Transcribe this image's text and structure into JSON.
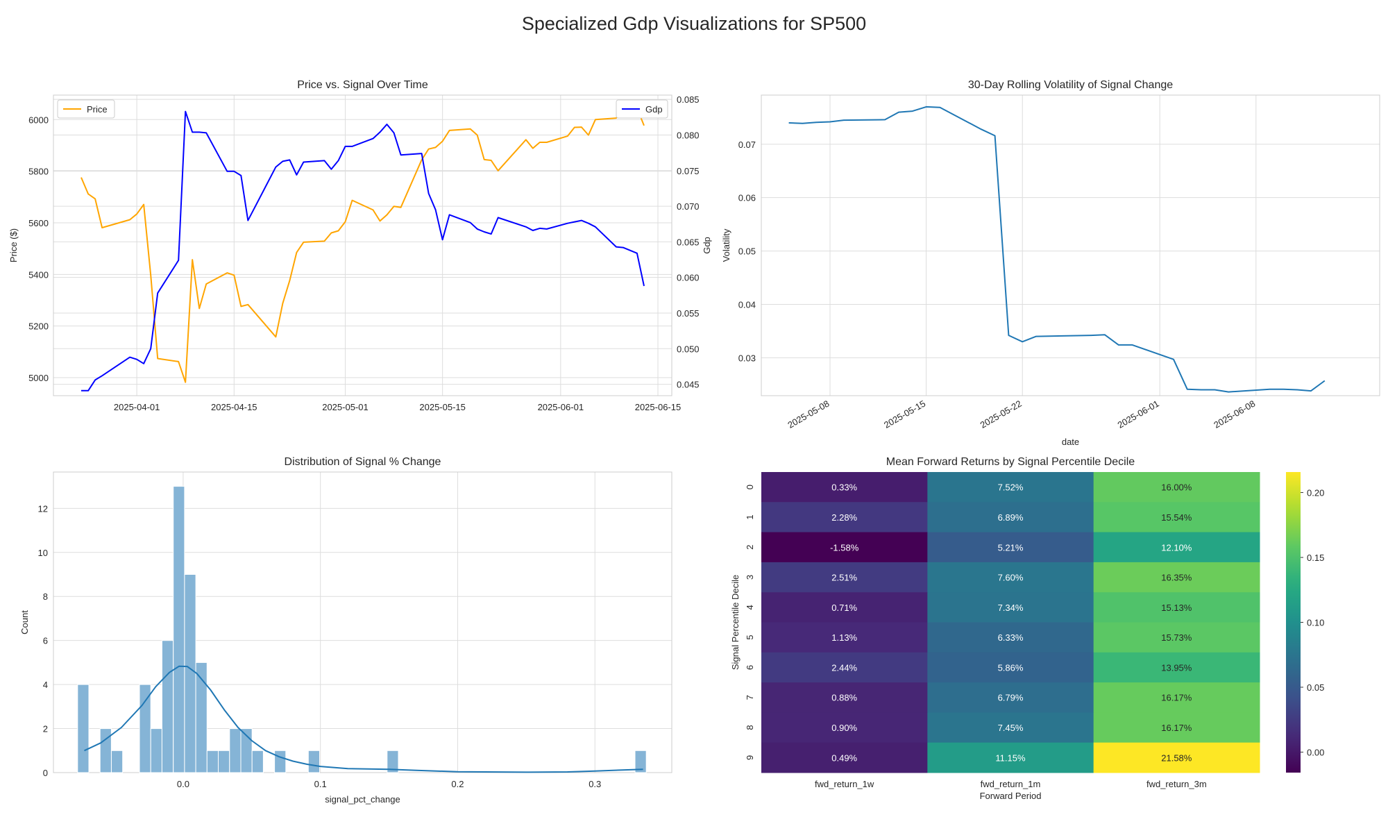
{
  "figure": {
    "suptitle": "Specialized Gdp Visualizations for SP500"
  },
  "colors": {
    "price": "#ffa500",
    "gdp": "#0000ff",
    "vol": "#1f77b4",
    "hist": "#85b4d6",
    "kde": "#1f77b4",
    "grid": "#dddddd",
    "spine": "#cccccc"
  },
  "chart_data": [
    {
      "type": "line",
      "title": "Price vs. Signal Over Time",
      "ylabel": "Price ($)",
      "y2label": "Gdp",
      "ylim": [
        4930,
        6095
      ],
      "y2lim": [
        0.0434,
        0.0856
      ],
      "yticks": [
        5000,
        5200,
        5400,
        5600,
        5800,
        6000
      ],
      "y2ticks": [
        0.045,
        0.05,
        0.055,
        0.06,
        0.065,
        0.07,
        0.075,
        0.08,
        0.085
      ],
      "xrange": [
        "2025-03-20",
        "2025-06-17"
      ],
      "xticks": [
        "2025-04-01",
        "2025-04-15",
        "2025-05-01",
        "2025-05-15",
        "2025-06-01",
        "2025-06-15"
      ],
      "legend": [
        "top-left",
        "top-right"
      ],
      "series": [
        {
          "name": "Price",
          "axis": "left",
          "points": [
            [
              "2025-03-24",
              5776
            ],
            [
              "2025-03-25",
              5712
            ],
            [
              "2025-03-26",
              5693
            ],
            [
              "2025-03-27",
              5581
            ],
            [
              "2025-03-31",
              5612
            ],
            [
              "2025-04-01",
              5634
            ],
            [
              "2025-04-02",
              5671
            ],
            [
              "2025-04-03",
              5397
            ],
            [
              "2025-04-04",
              5074
            ],
            [
              "2025-04-07",
              5062
            ],
            [
              "2025-04-08",
              4982
            ],
            [
              "2025-04-09",
              5457
            ],
            [
              "2025-04-10",
              5268
            ],
            [
              "2025-04-11",
              5363
            ],
            [
              "2025-04-14",
              5406
            ],
            [
              "2025-04-15",
              5397
            ],
            [
              "2025-04-16",
              5276
            ],
            [
              "2025-04-17",
              5283
            ],
            [
              "2025-04-21",
              5158
            ],
            [
              "2025-04-22",
              5288
            ],
            [
              "2025-04-23",
              5376
            ],
            [
              "2025-04-24",
              5485
            ],
            [
              "2025-04-25",
              5525
            ],
            [
              "2025-04-28",
              5529
            ],
            [
              "2025-04-29",
              5561
            ],
            [
              "2025-04-30",
              5569
            ],
            [
              "2025-05-01",
              5604
            ],
            [
              "2025-05-02",
              5687
            ],
            [
              "2025-05-05",
              5650
            ],
            [
              "2025-05-06",
              5607
            ],
            [
              "2025-05-07",
              5631
            ],
            [
              "2025-05-08",
              5664
            ],
            [
              "2025-05-09",
              5660
            ],
            [
              "2025-05-12",
              5844
            ],
            [
              "2025-05-13",
              5886
            ],
            [
              "2025-05-14",
              5892
            ],
            [
              "2025-05-15",
              5916
            ],
            [
              "2025-05-16",
              5958
            ],
            [
              "2025-05-19",
              5964
            ],
            [
              "2025-05-20",
              5940
            ],
            [
              "2025-05-21",
              5845
            ],
            [
              "2025-05-22",
              5842
            ],
            [
              "2025-05-23",
              5802
            ],
            [
              "2025-05-27",
              5922
            ],
            [
              "2025-05-28",
              5889
            ],
            [
              "2025-05-29",
              5912
            ],
            [
              "2025-05-30",
              5912
            ],
            [
              "2025-06-02",
              5936
            ],
            [
              "2025-06-03",
              5970
            ],
            [
              "2025-06-04",
              5971
            ],
            [
              "2025-06-05",
              5940
            ],
            [
              "2025-06-06",
              6000
            ],
            [
              "2025-06-09",
              6006
            ],
            [
              "2025-06-10",
              6038
            ],
            [
              "2025-06-11",
              6022
            ],
            [
              "2025-06-12",
              6045
            ],
            [
              "2025-06-13",
              5977
            ]
          ]
        },
        {
          "name": "Gdp",
          "axis": "right",
          "points": [
            [
              "2025-03-24",
              0.0441
            ],
            [
              "2025-03-25",
              0.0441
            ],
            [
              "2025-03-26",
              0.0456
            ],
            [
              "2025-03-27",
              0.0462
            ],
            [
              "2025-03-31",
              0.0488
            ],
            [
              "2025-04-01",
              0.0485
            ],
            [
              "2025-04-02",
              0.0479
            ],
            [
              "2025-04-03",
              0.05
            ],
            [
              "2025-04-04",
              0.0578
            ],
            [
              "2025-04-07",
              0.0624
            ],
            [
              "2025-04-08",
              0.0833
            ],
            [
              "2025-04-09",
              0.0804
            ],
            [
              "2025-04-10",
              0.0804
            ],
            [
              "2025-04-11",
              0.0803
            ],
            [
              "2025-04-14",
              0.0749
            ],
            [
              "2025-04-15",
              0.0749
            ],
            [
              "2025-04-16",
              0.0743
            ],
            [
              "2025-04-17",
              0.068
            ],
            [
              "2025-04-21",
              0.0755
            ],
            [
              "2025-04-22",
              0.0763
            ],
            [
              "2025-04-23",
              0.0765
            ],
            [
              "2025-04-24",
              0.0744
            ],
            [
              "2025-04-25",
              0.0762
            ],
            [
              "2025-04-28",
              0.0764
            ],
            [
              "2025-04-29",
              0.0752
            ],
            [
              "2025-04-30",
              0.0764
            ],
            [
              "2025-05-01",
              0.0784
            ],
            [
              "2025-05-02",
              0.0784
            ],
            [
              "2025-05-05",
              0.0795
            ],
            [
              "2025-05-06",
              0.0804
            ],
            [
              "2025-05-07",
              0.0815
            ],
            [
              "2025-05-08",
              0.0803
            ],
            [
              "2025-05-09",
              0.0772
            ],
            [
              "2025-05-12",
              0.0774
            ],
            [
              "2025-05-13",
              0.0718
            ],
            [
              "2025-05-14",
              0.0695
            ],
            [
              "2025-05-15",
              0.0653
            ],
            [
              "2025-05-16",
              0.0688
            ],
            [
              "2025-05-19",
              0.0677
            ],
            [
              "2025-05-20",
              0.0668
            ],
            [
              "2025-05-21",
              0.0664
            ],
            [
              "2025-05-22",
              0.0661
            ],
            [
              "2025-05-23",
              0.0684
            ],
            [
              "2025-05-27",
              0.0671
            ],
            [
              "2025-05-28",
              0.0666
            ],
            [
              "2025-05-29",
              0.0669
            ],
            [
              "2025-05-30",
              0.0668
            ],
            [
              "2025-06-02",
              0.0676
            ],
            [
              "2025-06-03",
              0.0678
            ],
            [
              "2025-06-04",
              0.068
            ],
            [
              "2025-06-05",
              0.0676
            ],
            [
              "2025-06-06",
              0.0671
            ],
            [
              "2025-06-09",
              0.0643
            ],
            [
              "2025-06-10",
              0.0642
            ],
            [
              "2025-06-11",
              0.0638
            ],
            [
              "2025-06-12",
              0.0634
            ],
            [
              "2025-06-13",
              0.0588
            ]
          ]
        }
      ]
    },
    {
      "type": "line",
      "title": "30-Day Rolling Volatility of Signal Change",
      "xlabel": "date",
      "ylabel": "Volatility",
      "ylim": [
        0.0229,
        0.0792
      ],
      "yticks": [
        0.03,
        0.04,
        0.05,
        0.06,
        0.07
      ],
      "xrange": [
        "2025-05-03",
        "2025-06-17"
      ],
      "xticks": [
        "2025-05-08",
        "2025-05-15",
        "2025-05-22",
        "2025-06-01",
        "2025-06-08"
      ],
      "grid": true,
      "series": [
        {
          "name": "",
          "points": [
            [
              "2025-05-05",
              0.074
            ],
            [
              "2025-05-06",
              0.0739
            ],
            [
              "2025-05-07",
              0.0741
            ],
            [
              "2025-05-08",
              0.0742
            ],
            [
              "2025-05-09",
              0.0745
            ],
            [
              "2025-05-12",
              0.0746
            ],
            [
              "2025-05-13",
              0.076
            ],
            [
              "2025-05-14",
              0.0762
            ],
            [
              "2025-05-15",
              0.077
            ],
            [
              "2025-05-16",
              0.0769
            ],
            [
              "2025-05-19",
              0.0728
            ],
            [
              "2025-05-20",
              0.0716
            ],
            [
              "2025-05-21",
              0.0342
            ],
            [
              "2025-05-22",
              0.033
            ],
            [
              "2025-05-23",
              0.034
            ],
            [
              "2025-05-27",
              0.0342
            ],
            [
              "2025-05-28",
              0.0343
            ],
            [
              "2025-05-29",
              0.0324
            ],
            [
              "2025-05-30",
              0.0324
            ],
            [
              "2025-06-02",
              0.0297
            ],
            [
              "2025-06-03",
              0.0241
            ],
            [
              "2025-06-04",
              0.024
            ],
            [
              "2025-06-05",
              0.024
            ],
            [
              "2025-06-06",
              0.0236
            ],
            [
              "2025-06-09",
              0.0241
            ],
            [
              "2025-06-10",
              0.0241
            ],
            [
              "2025-06-11",
              0.024
            ],
            [
              "2025-06-12",
              0.0238
            ],
            [
              "2025-06-13",
              0.0257
            ]
          ]
        }
      ]
    },
    {
      "type": "histogram",
      "title": "Distribution of Signal % Change",
      "xlabel": "signal_pct_change",
      "ylabel": "Count",
      "xlim": [
        -0.0945,
        0.356
      ],
      "ylim": [
        0,
        13.65
      ],
      "xticks": [
        0.0,
        0.1,
        0.2,
        0.3
      ],
      "yticks": [
        0,
        2,
        4,
        6,
        8,
        10,
        12
      ],
      "bin_width": 0.0082,
      "bins": [
        [
          -0.0728,
          4
        ],
        [
          -0.0564,
          2
        ],
        [
          -0.0482,
          1
        ],
        [
          -0.0277,
          4
        ],
        [
          -0.0195,
          2
        ],
        [
          -0.0113,
          6
        ],
        [
          -0.0031,
          13
        ],
        [
          0.0051,
          9
        ],
        [
          0.0133,
          5
        ],
        [
          0.0215,
          1
        ],
        [
          0.0297,
          1
        ],
        [
          0.0379,
          2
        ],
        [
          0.0461,
          2
        ],
        [
          0.0543,
          1
        ],
        [
          0.0707,
          1
        ],
        [
          0.0953,
          1
        ],
        [
          0.1527,
          1
        ],
        [
          0.3333,
          1
        ]
      ],
      "kde": [
        [
          -0.072,
          1.0
        ],
        [
          -0.06,
          1.35
        ],
        [
          -0.045,
          2.05
        ],
        [
          -0.03,
          3.05
        ],
        [
          -0.02,
          3.9
        ],
        [
          -0.01,
          4.55
        ],
        [
          -0.003,
          4.83
        ],
        [
          0.003,
          4.82
        ],
        [
          0.01,
          4.5
        ],
        [
          0.02,
          3.75
        ],
        [
          0.03,
          2.85
        ],
        [
          0.04,
          2.05
        ],
        [
          0.05,
          1.45
        ],
        [
          0.06,
          1.0
        ],
        [
          0.07,
          0.72
        ],
        [
          0.08,
          0.52
        ],
        [
          0.09,
          0.38
        ],
        [
          0.1,
          0.28
        ],
        [
          0.12,
          0.18
        ],
        [
          0.15,
          0.15
        ],
        [
          0.17,
          0.1
        ],
        [
          0.2,
          0.04
        ],
        [
          0.25,
          0.02
        ],
        [
          0.28,
          0.03
        ],
        [
          0.3,
          0.07
        ],
        [
          0.32,
          0.12
        ],
        [
          0.335,
          0.15
        ]
      ]
    },
    {
      "type": "heatmap",
      "title": "Mean Forward Returns by Signal Percentile Decile",
      "xlabel": "Forward Period",
      "ylabel": "Signal Percentile Decile",
      "columns": [
        "fwd_return_1w",
        "fwd_return_1m",
        "fwd_return_3m"
      ],
      "rows": [
        "0",
        "1",
        "2",
        "3",
        "4",
        "5",
        "6",
        "7",
        "8",
        "9"
      ],
      "values": [
        [
          0.0033,
          0.0752,
          0.16
        ],
        [
          0.0228,
          0.0689,
          0.1554
        ],
        [
          -0.0158,
          0.0521,
          0.121
        ],
        [
          0.0251,
          0.076,
          0.1635
        ],
        [
          0.0071,
          0.0734,
          0.1513
        ],
        [
          0.0113,
          0.0633,
          0.1573
        ],
        [
          0.0244,
          0.0586,
          0.1395
        ],
        [
          0.0088,
          0.0679,
          0.1617
        ],
        [
          0.009,
          0.0745,
          0.1617
        ],
        [
          0.0049,
          0.1115,
          0.2158
        ]
      ],
      "labels": [
        [
          "0.33%",
          "7.52%",
          "16.00%"
        ],
        [
          "2.28%",
          "6.89%",
          "15.54%"
        ],
        [
          "-1.58%",
          "5.21%",
          "12.10%"
        ],
        [
          "2.51%",
          "7.60%",
          "16.35%"
        ],
        [
          "0.71%",
          "7.34%",
          "15.13%"
        ],
        [
          "1.13%",
          "6.33%",
          "15.73%"
        ],
        [
          "2.44%",
          "5.86%",
          "13.95%"
        ],
        [
          "0.88%",
          "6.79%",
          "16.17%"
        ],
        [
          "0.90%",
          "7.45%",
          "16.17%"
        ],
        [
          "0.49%",
          "11.15%",
          "21.58%"
        ]
      ],
      "colormap": "viridis",
      "vmin": -0.0158,
      "vmax": 0.2158,
      "colorbar_ticks": [
        0.0,
        0.05,
        0.1,
        0.15,
        0.2
      ]
    }
  ]
}
